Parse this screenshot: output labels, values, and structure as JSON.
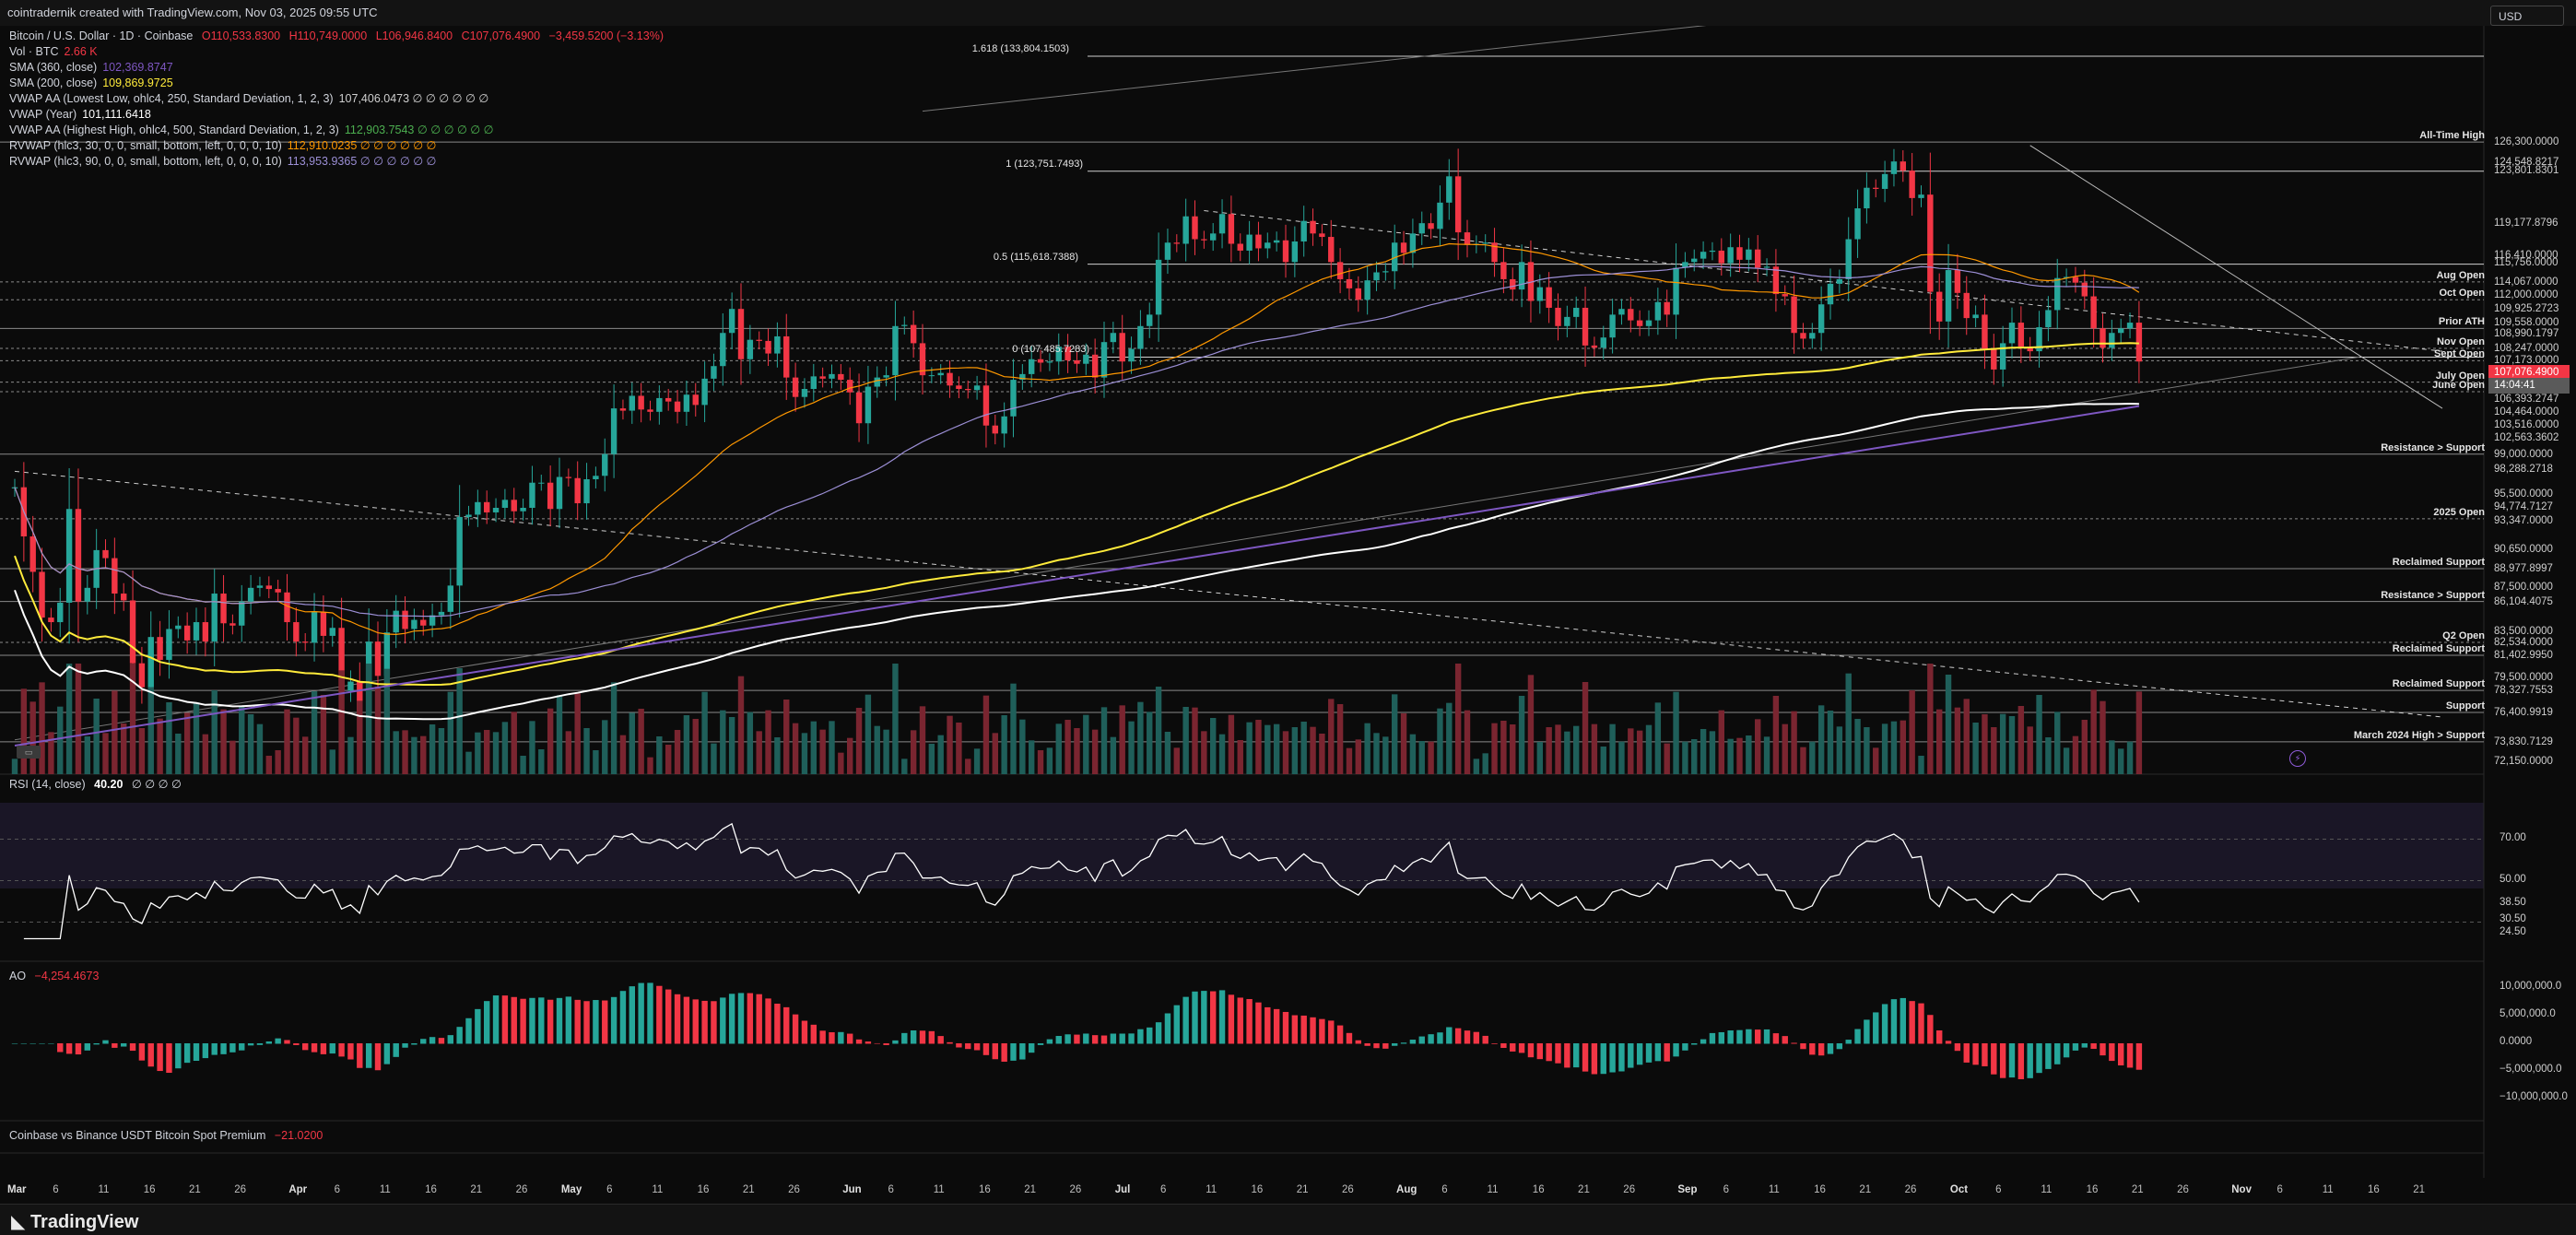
{
  "header": {
    "text": "cointradernik created with TradingView.com, Nov 03, 2025 09:55 UTC"
  },
  "currency_button": "USD",
  "brand": "TradingView",
  "legend": {
    "title": "Bitcoin / U.S. Dollar · 1D · Coinbase",
    "o": "O110,533.8300",
    "h": "H110,749.0000",
    "l": "L106,946.8400",
    "c": "C107,076.4900",
    "chg": "−3,459.5200 (−3.13%)",
    "lines": [
      {
        "label": "Vol · BTC",
        "value": "2.66 K",
        "color": "#f23645"
      },
      {
        "label": "SMA (360, close)",
        "value": "102,369.8747",
        "color": "#7e57c2"
      },
      {
        "label": "SMA (200, close)",
        "value": "109,869.9725",
        "color": "#ffeb3b"
      },
      {
        "label": "VWAP AA (Lowest Low, ohlc4, 250, Standard Deviation, 1, 2, 3)",
        "value": "107,406.0473  ∅ ∅ ∅ ∅ ∅ ∅",
        "color": "#cfcfcf"
      },
      {
        "label": "VWAP (Year)",
        "value": "101,111.6418",
        "color": "#ffffff"
      },
      {
        "label": "VWAP AA (Highest High, ohlc4, 500, Standard Deviation, 1, 2, 3)",
        "value": "112,903.7543  ∅ ∅ ∅ ∅ ∅ ∅",
        "color": "#4caf50"
      },
      {
        "label": "RVWAP (hlc3, 30, 0, 0, small, bottom, left, 0, 0, 0, 10)",
        "value": "112,910.0235  ∅ ∅ ∅ ∅ ∅ ∅",
        "color": "#ff9800"
      },
      {
        "label": "RVWAP (hlc3, 90, 0, 0, small, bottom, left, 0, 0, 0, 10)",
        "value": "113,953.9365  ∅ ∅ ∅ ∅ ∅ ∅",
        "color": "#9c8fd6"
      }
    ]
  },
  "fib_labels": [
    {
      "text": "1.618 (133,804.1503)",
      "price": 133804
    },
    {
      "text": "1 (123,751.7493)",
      "price": 123751
    },
    {
      "text": "0.5 (115,618.7388)",
      "price": 115618
    },
    {
      "text": "0 (107,485.7283)",
      "price": 107485
    }
  ],
  "level_labels": [
    {
      "text": "All-Time High",
      "price": 126300
    },
    {
      "text": "Aug Open",
      "price": 114067
    },
    {
      "text": "Oct Open",
      "price": 112500
    },
    {
      "text": "Prior ATH",
      "price": 109990
    },
    {
      "text": "Nov Open",
      "price": 108247
    },
    {
      "text": "Sept Open",
      "price": 107173
    },
    {
      "text": "July Open",
      "price": 105300
    },
    {
      "text": "June Open",
      "price": 104464
    },
    {
      "text": "Resistance > Support",
      "price": 99000
    },
    {
      "text": "2025 Open",
      "price": 93347
    },
    {
      "text": "Reclaimed Support",
      "price": 88977
    },
    {
      "text": "Resistance > Support",
      "price": 86104
    },
    {
      "text": "Q2 Open",
      "price": 82534
    },
    {
      "text": "Reclaimed Support",
      "price": 81402
    },
    {
      "text": "Reclaimed Support",
      "price": 78327
    },
    {
      "text": "Support",
      "price": 76400
    },
    {
      "text": "March 2024 High > Support",
      "price": 73830
    }
  ],
  "price_scale": [
    {
      "text": "126,300.0000",
      "price": 126300,
      "bg": ""
    },
    {
      "text": "124,548.8217",
      "price": 124548,
      "bg": ""
    },
    {
      "text": "123,801.8301",
      "price": 123801,
      "bg": ""
    },
    {
      "text": "119,177.8796",
      "price": 119177,
      "bg": ""
    },
    {
      "text": "116,410.0000",
      "price": 116410,
      "bg": ""
    },
    {
      "text": "115,756.0000",
      "price": 115756,
      "bg": ""
    },
    {
      "text": "114,067.0000",
      "price": 114067,
      "bg": ""
    },
    {
      "text": "112,000.0000",
      "price": 112900,
      "bg": ""
    },
    {
      "text": "109,925.2723",
      "price": 111700,
      "bg": ""
    },
    {
      "text": "109,558.0000",
      "price": 110500,
      "bg": ""
    },
    {
      "text": "108,990.1797",
      "price": 109500,
      "bg": ""
    },
    {
      "text": "108,247.0000",
      "price": 108247,
      "bg": ""
    },
    {
      "text": "107,173.0000",
      "price": 107173,
      "bg": ""
    },
    {
      "text": "107,076.4900",
      "price": 106150,
      "bg": "#f23645"
    },
    {
      "text": "14:04:41",
      "price": 105000,
      "bg": "#5a5a5a"
    },
    {
      "text": "106,393.2747",
      "price": 103850,
      "bg": ""
    },
    {
      "text": "104,464.0000",
      "price": 102650,
      "bg": ""
    },
    {
      "text": "103,516.0000",
      "price": 101550,
      "bg": ""
    },
    {
      "text": "102,563.3602",
      "price": 100400,
      "bg": ""
    },
    {
      "text": "99,000.0000",
      "price": 99000,
      "bg": ""
    },
    {
      "text": "98,288.2718",
      "price": 97700,
      "bg": ""
    },
    {
      "text": "95,500.0000",
      "price": 95500,
      "bg": ""
    },
    {
      "text": "94,774.7127",
      "price": 94400,
      "bg": ""
    },
    {
      "text": "93,347.0000",
      "price": 93200,
      "bg": ""
    },
    {
      "text": "90,650.0000",
      "price": 90650,
      "bg": ""
    },
    {
      "text": "88,977.8997",
      "price": 88977,
      "bg": ""
    },
    {
      "text": "87,500.0000",
      "price": 87400,
      "bg": ""
    },
    {
      "text": "86,104.4075",
      "price": 86104,
      "bg": ""
    },
    {
      "text": "83,500.0000",
      "price": 83500,
      "bg": ""
    },
    {
      "text": "82,534.0000",
      "price": 82534,
      "bg": ""
    },
    {
      "text": "81,402.9950",
      "price": 81402,
      "bg": ""
    },
    {
      "text": "79,500.0000",
      "price": 79500,
      "bg": ""
    },
    {
      "text": "78,327.7553",
      "price": 78327,
      "bg": ""
    },
    {
      "text": "76,400.9919",
      "price": 76400,
      "bg": ""
    },
    {
      "text": "73,830.7129",
      "price": 73830,
      "bg": ""
    },
    {
      "text": "72,150.0000",
      "price": 72150,
      "bg": ""
    }
  ],
  "rsi": {
    "label": "RSI (14, close)",
    "value": "40.20",
    "extra": "∅ ∅ ∅ ∅",
    "levels": [
      {
        "text": "70.00",
        "v": 70
      },
      {
        "text": "50.00",
        "v": 50
      },
      {
        "text": "38.50",
        "v": 38.5
      },
      {
        "text": "30.50",
        "v": 30.5
      },
      {
        "text": "24.50",
        "v": 24.5
      }
    ]
  },
  "ao": {
    "label": "AO",
    "value": "−4,254.4673",
    "levels": [
      {
        "text": "10,000,000.0",
        "v": 10000
      },
      {
        "text": "5,000,000.0",
        "v": 5000
      },
      {
        "text": "0.0000",
        "v": 0
      },
      {
        "text": "−5,000,000.0",
        "v": -5000
      },
      {
        "text": "−10,000,000.0",
        "v": -10000
      }
    ]
  },
  "premium": {
    "label": "Coinbase vs Binance USDT Bitcoin Spot Premium",
    "value": "−21.0200"
  },
  "time_axis": [
    {
      "text": "Mar",
      "day": 0
    },
    {
      "text": "6",
      "day": 5
    },
    {
      "text": "11",
      "day": 10
    },
    {
      "text": "16",
      "day": 15
    },
    {
      "text": "21",
      "day": 20
    },
    {
      "text": "26",
      "day": 25
    },
    {
      "text": "Apr",
      "day": 31
    },
    {
      "text": "6",
      "day": 36
    },
    {
      "text": "11",
      "day": 41
    },
    {
      "text": "16",
      "day": 46
    },
    {
      "text": "21",
      "day": 51
    },
    {
      "text": "26",
      "day": 56
    },
    {
      "text": "May",
      "day": 61
    },
    {
      "text": "6",
      "day": 66
    },
    {
      "text": "11",
      "day": 71
    },
    {
      "text": "16",
      "day": 76
    },
    {
      "text": "21",
      "day": 81
    },
    {
      "text": "26",
      "day": 86
    },
    {
      "text": "Jun",
      "day": 92
    },
    {
      "text": "6",
      "day": 97
    },
    {
      "text": "11",
      "day": 102
    },
    {
      "text": "16",
      "day": 107
    },
    {
      "text": "21",
      "day": 112
    },
    {
      "text": "26",
      "day": 117
    },
    {
      "text": "Jul",
      "day": 122
    },
    {
      "text": "6",
      "day": 127
    },
    {
      "text": "11",
      "day": 132
    },
    {
      "text": "16",
      "day": 137
    },
    {
      "text": "21",
      "day": 142
    },
    {
      "text": "26",
      "day": 147
    },
    {
      "text": "Aug",
      "day": 153
    },
    {
      "text": "6",
      "day": 158
    },
    {
      "text": "11",
      "day": 163
    },
    {
      "text": "16",
      "day": 168
    },
    {
      "text": "21",
      "day": 173
    },
    {
      "text": "26",
      "day": 178
    },
    {
      "text": "Sep",
      "day": 184
    },
    {
      "text": "6",
      "day": 189
    },
    {
      "text": "11",
      "day": 194
    },
    {
      "text": "16",
      "day": 199
    },
    {
      "text": "21",
      "day": 204
    },
    {
      "text": "26",
      "day": 209
    },
    {
      "text": "Oct",
      "day": 214
    },
    {
      "text": "6",
      "day": 219
    },
    {
      "text": "11",
      "day": 224
    },
    {
      "text": "16",
      "day": 229
    },
    {
      "text": "21",
      "day": 234
    },
    {
      "text": "26",
      "day": 239
    },
    {
      "text": "Nov",
      "day": 245
    },
    {
      "text": "6",
      "day": 250
    },
    {
      "text": "11",
      "day": 255
    },
    {
      "text": "16",
      "day": 260
    },
    {
      "text": "21",
      "day": 265
    }
  ],
  "chart_data": {
    "type": "candlestick",
    "symbol": "Bitcoin / U.S. Dollar",
    "interval": "1D",
    "exchange": "Coinbase",
    "start_date": "2025-02-23",
    "closes": [
      96100,
      91800,
      88700,
      84700,
      84300,
      86000,
      94200,
      86100,
      87300,
      90600,
      89900,
      86800,
      86200,
      80700,
      78600,
      83000,
      81000,
      83700,
      84000,
      82700,
      84300,
      82600,
      86800,
      84200,
      84000,
      86100,
      87300,
      87500,
      87200,
      86900,
      84300,
      82600,
      82500,
      85200,
      83100,
      83800,
      78300,
      79100,
      76300,
      82600,
      79600,
      83400,
      85300,
      83700,
      84500,
      84000,
      84900,
      85200,
      87500,
      93500,
      93700,
      94800,
      93900,
      94300,
      95000,
      94000,
      94300,
      96500,
      96500,
      94200,
      97000,
      96900,
      94700,
      96800,
      97100,
      99000,
      103000,
      102800,
      104100,
      102900,
      102700,
      103900,
      103600,
      102700,
      104200,
      103300,
      105600,
      106700,
      109600,
      111700,
      107300,
      109000,
      108900,
      107800,
      109300,
      105700,
      104000,
      104700,
      105800,
      105600,
      106000,
      105500,
      104400,
      101700,
      104900,
      105700,
      105900,
      110200,
      110300,
      108700,
      105900,
      105900,
      106100,
      105000,
      104700,
      104600,
      105000,
      101500,
      100800,
      102300,
      105500,
      106000,
      107300,
      107000,
      107100,
      108400,
      107200,
      106900,
      107700,
      105700,
      108800,
      109600,
      107100,
      108200,
      110200,
      111200,
      116000,
      117500,
      117400,
      119800,
      117800,
      117700,
      118300,
      120000,
      117400,
      116800,
      118200,
      117000,
      117500,
      117700,
      115800,
      117600,
      119400,
      118300,
      118000,
      115800,
      114300,
      113500,
      112500,
      114200,
      114900,
      115000,
      117500,
      116600,
      118300,
      119200,
      118700,
      121000,
      123300,
      118400,
      117300,
      117400,
      117500,
      115800,
      114300,
      113400,
      115800,
      112400,
      113600,
      111800,
      110200,
      111000,
      111800,
      108500,
      108300,
      109200,
      111200,
      111700,
      110700,
      110200,
      110700,
      112300,
      111200,
      115300,
      115800,
      116100,
      116700,
      116800,
      115700,
      117100,
      116000,
      116900,
      115300,
      115400,
      113000,
      112800,
      109600,
      109100,
      109600,
      112100,
      113900,
      114300,
      117800,
      120500,
      122300,
      122200,
      123500,
      124600,
      123800,
      121400,
      121700,
      113200,
      110600,
      115100,
      113100,
      110900,
      111200,
      108200,
      106400,
      108700,
      110500,
      108400,
      108000,
      110100,
      111600,
      114400,
      114500,
      114000,
      112800,
      110000,
      108300,
      109600,
      110000,
      110500,
      107100
    ]
  }
}
